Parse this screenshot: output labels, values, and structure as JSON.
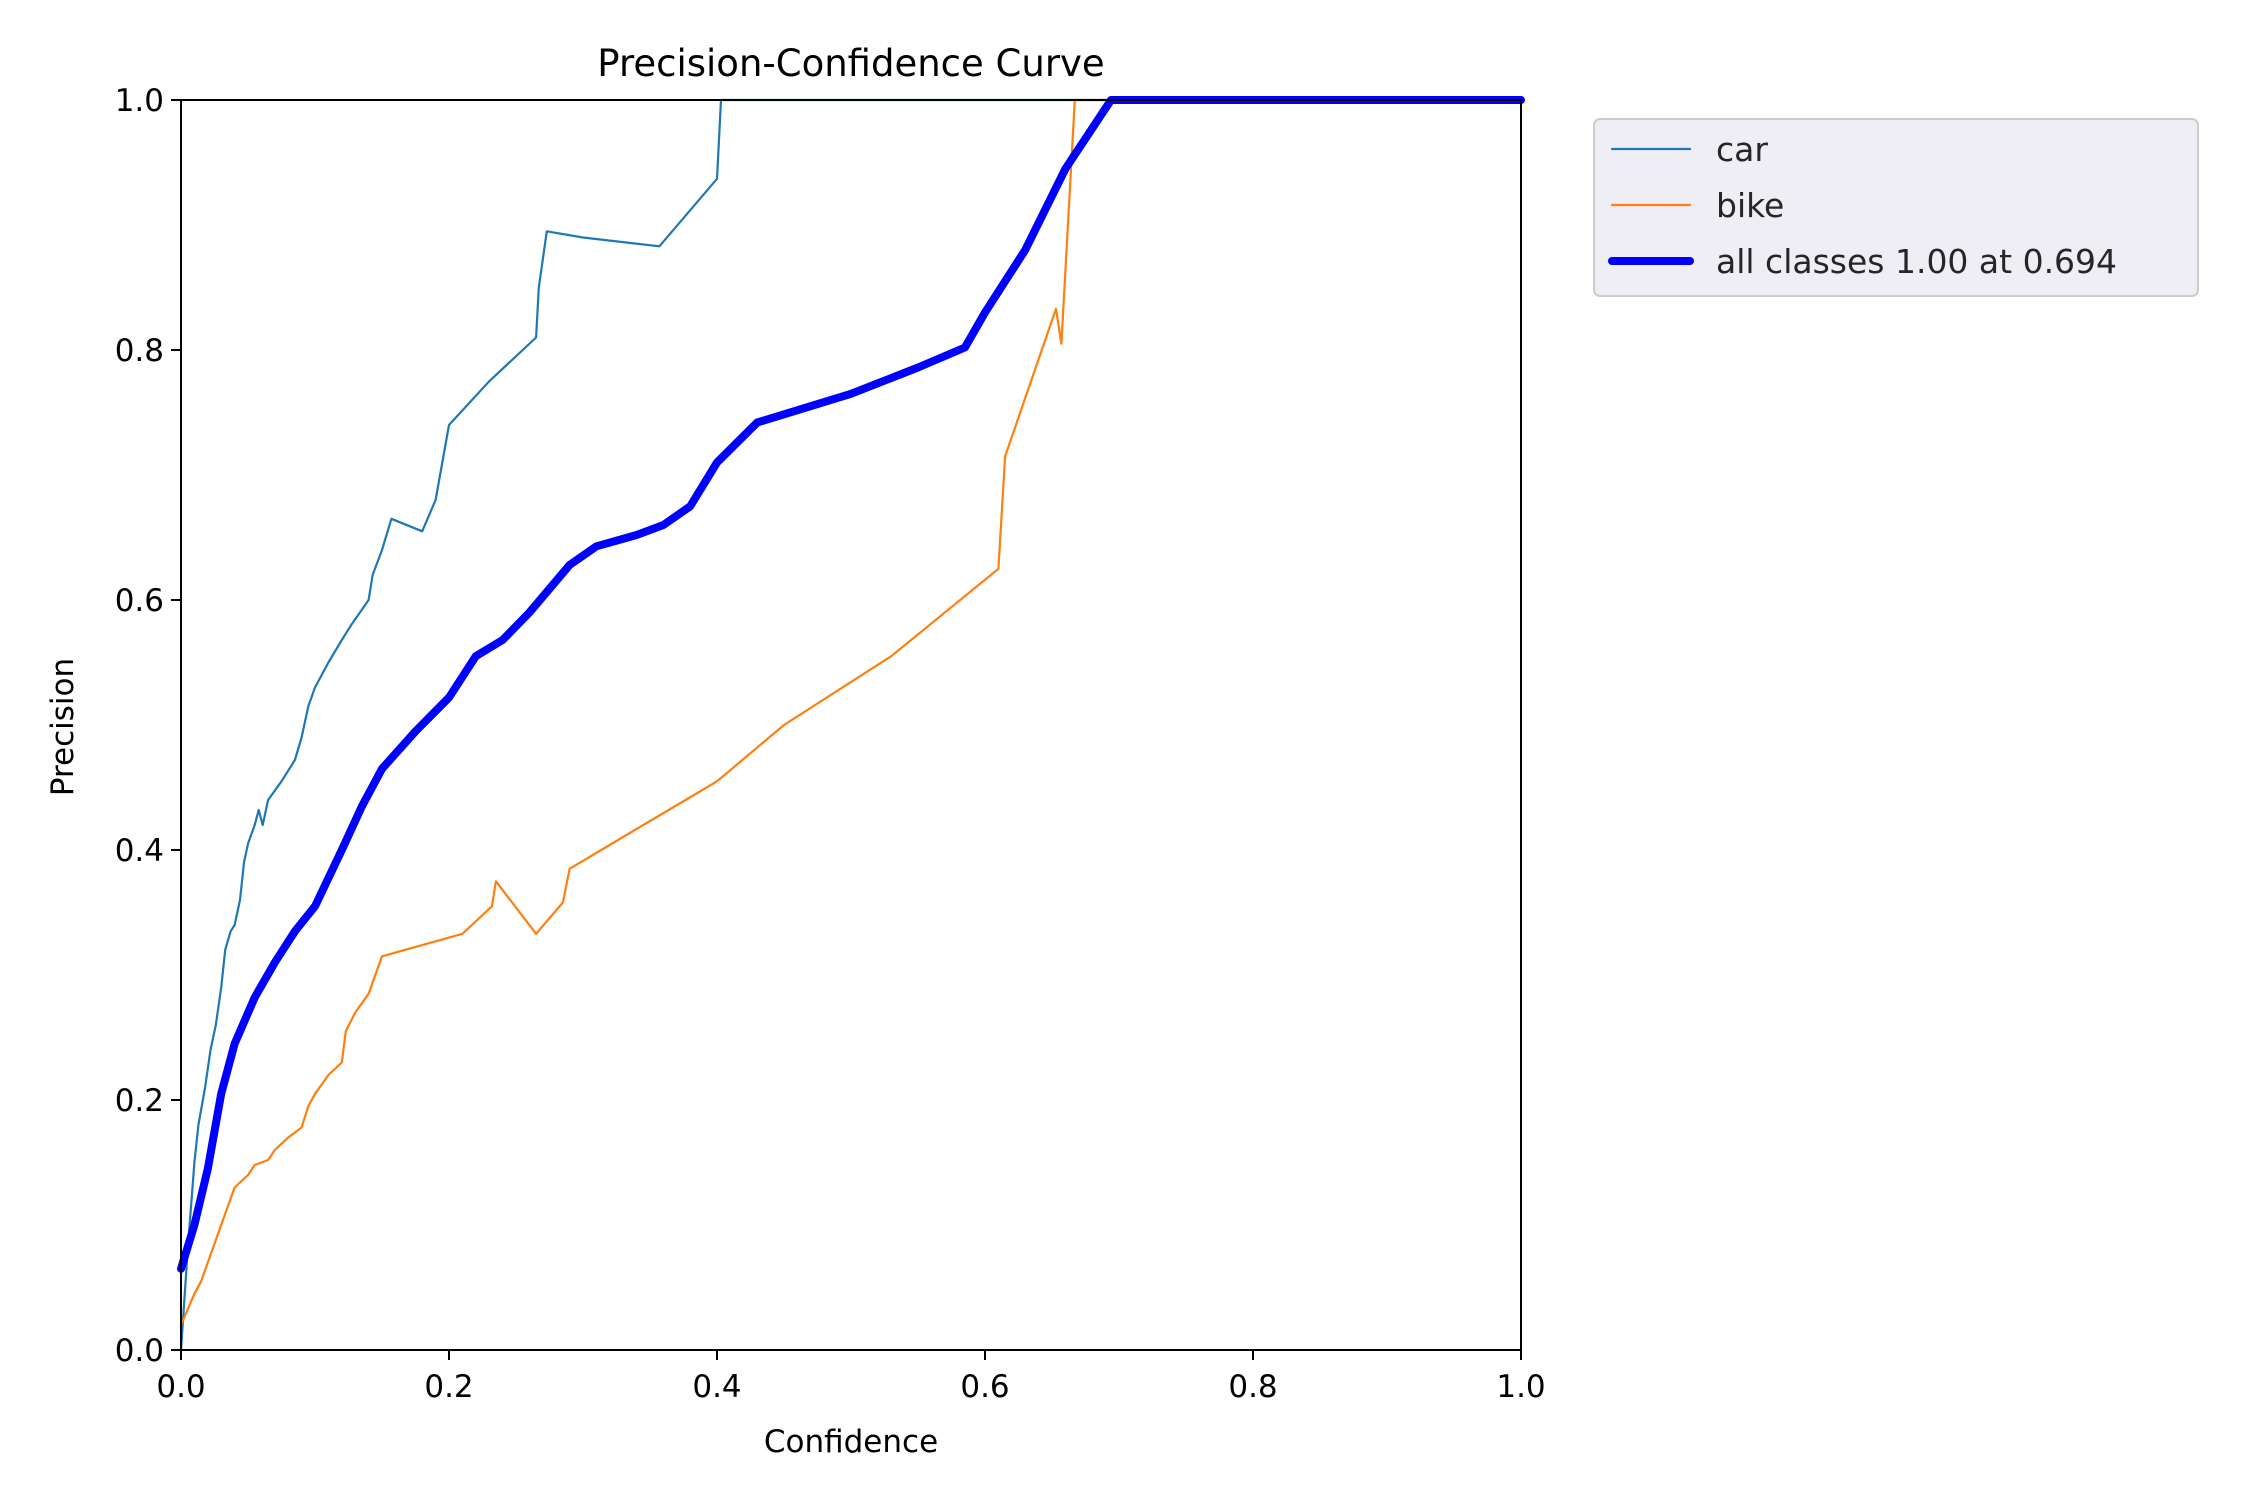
{
  "chart_data": {
    "type": "line",
    "title": "Precision-Confidence Curve",
    "xlabel": "Confidence",
    "ylabel": "Precision",
    "xlim": [
      0,
      1
    ],
    "ylim": [
      0,
      1
    ],
    "x_ticks": [
      "0.0",
      "0.2",
      "0.4",
      "0.6",
      "0.8",
      "1.0"
    ],
    "y_ticks": [
      "0.0",
      "0.2",
      "0.4",
      "0.6",
      "0.8",
      "1.0"
    ],
    "grid": false,
    "legend_position": "outside-top-right",
    "series": [
      {
        "name": "car",
        "color": "#1f77b4",
        "style": "thin",
        "points": [
          [
            0.0,
            0.0
          ],
          [
            0.005,
            0.08
          ],
          [
            0.01,
            0.15
          ],
          [
            0.013,
            0.18
          ],
          [
            0.018,
            0.21
          ],
          [
            0.022,
            0.24
          ],
          [
            0.026,
            0.26
          ],
          [
            0.03,
            0.29
          ],
          [
            0.033,
            0.32
          ],
          [
            0.037,
            0.335
          ],
          [
            0.04,
            0.34
          ],
          [
            0.044,
            0.36
          ],
          [
            0.047,
            0.39
          ],
          [
            0.05,
            0.405
          ],
          [
            0.055,
            0.42
          ],
          [
            0.058,
            0.432
          ],
          [
            0.061,
            0.42
          ],
          [
            0.065,
            0.44
          ],
          [
            0.075,
            0.455
          ],
          [
            0.085,
            0.472
          ],
          [
            0.09,
            0.49
          ],
          [
            0.095,
            0.515
          ],
          [
            0.1,
            0.53
          ],
          [
            0.11,
            0.55
          ],
          [
            0.12,
            0.568
          ],
          [
            0.127,
            0.58
          ],
          [
            0.14,
            0.6
          ],
          [
            0.143,
            0.62
          ],
          [
            0.15,
            0.64
          ],
          [
            0.157,
            0.665
          ],
          [
            0.18,
            0.655
          ],
          [
            0.19,
            0.68
          ],
          [
            0.195,
            0.71
          ],
          [
            0.2,
            0.74
          ],
          [
            0.23,
            0.775
          ],
          [
            0.265,
            0.81
          ],
          [
            0.267,
            0.85
          ],
          [
            0.273,
            0.895
          ],
          [
            0.3,
            0.89
          ],
          [
            0.357,
            0.883
          ],
          [
            0.4,
            0.937
          ],
          [
            0.403,
            1.0
          ],
          [
            1.0,
            1.0
          ]
        ]
      },
      {
        "name": "bike",
        "color": "#ff7f0e",
        "style": "thin",
        "points": [
          [
            0.0,
            0.02
          ],
          [
            0.01,
            0.045
          ],
          [
            0.015,
            0.055
          ],
          [
            0.02,
            0.07
          ],
          [
            0.025,
            0.085
          ],
          [
            0.03,
            0.1
          ],
          [
            0.035,
            0.115
          ],
          [
            0.04,
            0.13
          ],
          [
            0.05,
            0.14
          ],
          [
            0.055,
            0.148
          ],
          [
            0.065,
            0.152
          ],
          [
            0.07,
            0.16
          ],
          [
            0.08,
            0.17
          ],
          [
            0.09,
            0.178
          ],
          [
            0.095,
            0.195
          ],
          [
            0.1,
            0.205
          ],
          [
            0.11,
            0.22
          ],
          [
            0.12,
            0.23
          ],
          [
            0.123,
            0.255
          ],
          [
            0.13,
            0.27
          ],
          [
            0.14,
            0.285
          ],
          [
            0.15,
            0.315
          ],
          [
            0.21,
            0.333
          ],
          [
            0.232,
            0.355
          ],
          [
            0.235,
            0.375
          ],
          [
            0.265,
            0.333
          ],
          [
            0.285,
            0.358
          ],
          [
            0.29,
            0.385
          ],
          [
            0.345,
            0.42
          ],
          [
            0.4,
            0.455
          ],
          [
            0.45,
            0.5
          ],
          [
            0.53,
            0.555
          ],
          [
            0.61,
            0.625
          ],
          [
            0.615,
            0.715
          ],
          [
            0.653,
            0.833
          ],
          [
            0.657,
            0.805
          ],
          [
            0.667,
            1.0
          ],
          [
            1.0,
            1.0
          ]
        ]
      },
      {
        "name": "all classes 1.00 at 0.694",
        "color": "#0000ff",
        "style": "thick",
        "points": [
          [
            0.0,
            0.065
          ],
          [
            0.01,
            0.1
          ],
          [
            0.02,
            0.145
          ],
          [
            0.03,
            0.205
          ],
          [
            0.04,
            0.245
          ],
          [
            0.055,
            0.282
          ],
          [
            0.07,
            0.31
          ],
          [
            0.085,
            0.335
          ],
          [
            0.1,
            0.355
          ],
          [
            0.12,
            0.4
          ],
          [
            0.135,
            0.435
          ],
          [
            0.15,
            0.465
          ],
          [
            0.175,
            0.495
          ],
          [
            0.2,
            0.522
          ],
          [
            0.22,
            0.555
          ],
          [
            0.24,
            0.568
          ],
          [
            0.26,
            0.59
          ],
          [
            0.29,
            0.628
          ],
          [
            0.31,
            0.643
          ],
          [
            0.34,
            0.652
          ],
          [
            0.36,
            0.66
          ],
          [
            0.38,
            0.675
          ],
          [
            0.4,
            0.71
          ],
          [
            0.43,
            0.742
          ],
          [
            0.5,
            0.765
          ],
          [
            0.55,
            0.786
          ],
          [
            0.585,
            0.802
          ],
          [
            0.6,
            0.83
          ],
          [
            0.63,
            0.88
          ],
          [
            0.66,
            0.945
          ],
          [
            0.694,
            1.0
          ],
          [
            1.0,
            1.0
          ]
        ]
      }
    ]
  }
}
